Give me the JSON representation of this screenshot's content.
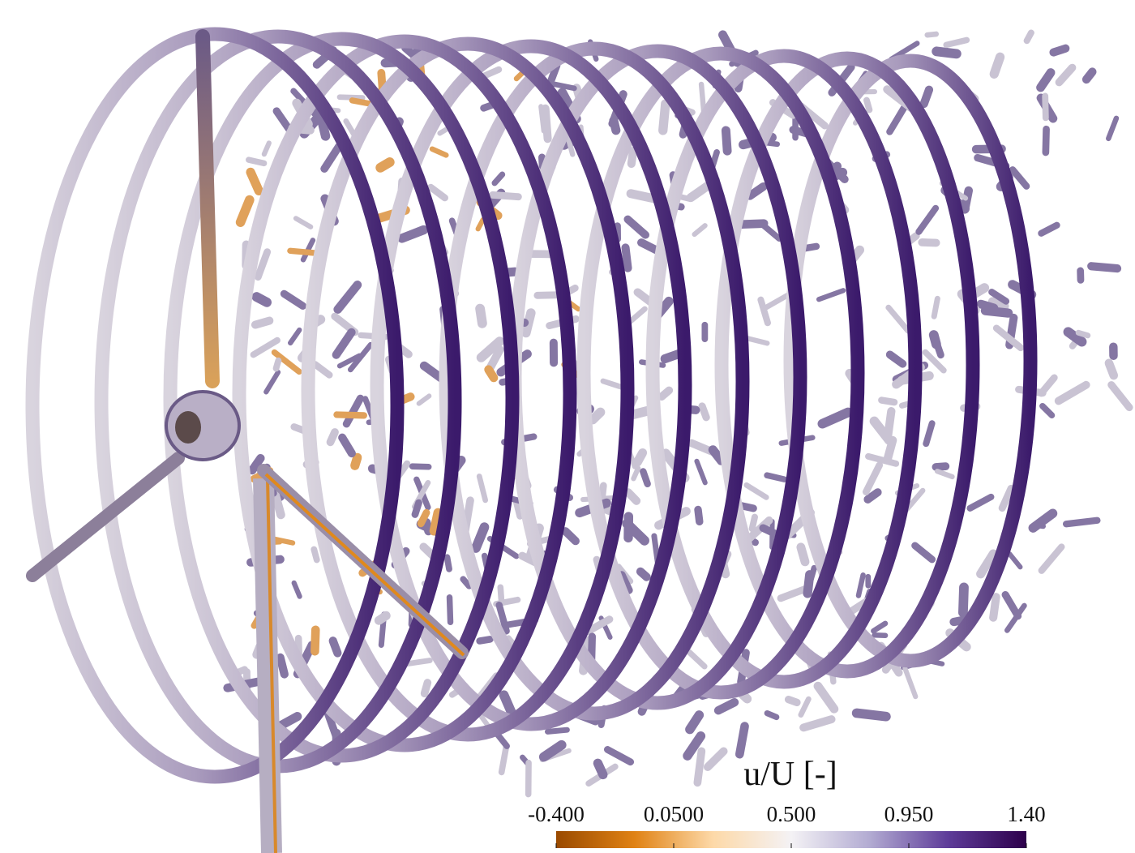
{
  "colorbar": {
    "title": "u/U [-]",
    "range": [
      -0.4,
      1.4
    ],
    "ticks": [
      {
        "value": -0.4,
        "label": "-0.400"
      },
      {
        "value": 0.05,
        "label": "0.0500"
      },
      {
        "value": 0.5,
        "label": "0.500"
      },
      {
        "value": 0.95,
        "label": "0.950"
      },
      {
        "value": 1.4,
        "label": "1.40"
      }
    ],
    "colors": [
      "#9a4a00",
      "#e08214",
      "#fdd9a8",
      "#f4f2f5",
      "#b2abd2",
      "#5e3c99",
      "#2d004b"
    ]
  }
}
